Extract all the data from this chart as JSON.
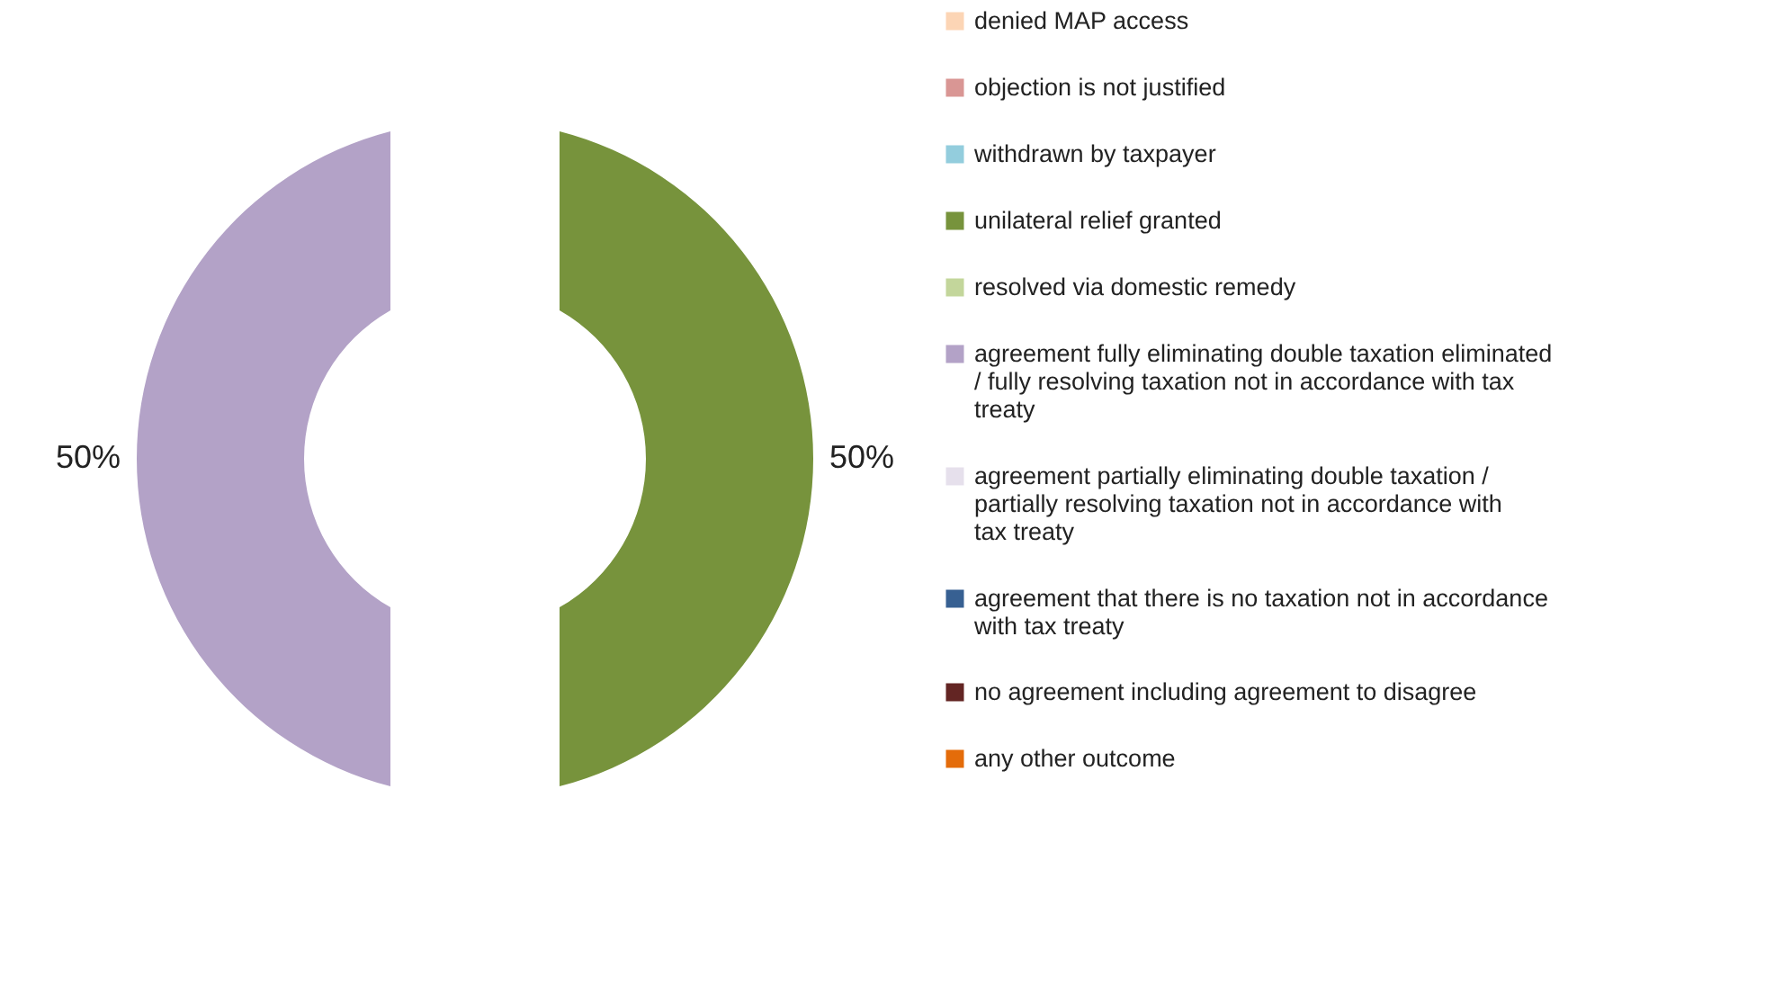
{
  "chart_data": {
    "type": "donut",
    "categories": [
      "denied MAP access",
      "objection is not justified",
      "withdrawn by taxpayer",
      "unilateral relief granted",
      "resolved via domestic remedy",
      "agreement fully eliminating double taxation eliminated / fully resolving taxation not in accordance with tax treaty",
      "agreement partially eliminating double taxation / partially resolving taxation not in accordance with tax treaty",
      "agreement that there is no taxation not in accordance with tax treaty",
      "no agreement including agreement to disagree",
      "any other outcome"
    ],
    "values": [
      0,
      0,
      0,
      50,
      0,
      50,
      0,
      0,
      0,
      0
    ],
    "colors": [
      "#fcd5b5",
      "#d99694",
      "#93cddd",
      "#77933c",
      "#c3d69b",
      "#b3a2c7",
      "#e6e0ec",
      "#376092",
      "#632523",
      "#e46c0a"
    ],
    "value_labels": [
      null,
      null,
      null,
      "50%",
      null,
      "50%",
      null,
      null,
      null,
      null
    ],
    "legend": "right"
  }
}
